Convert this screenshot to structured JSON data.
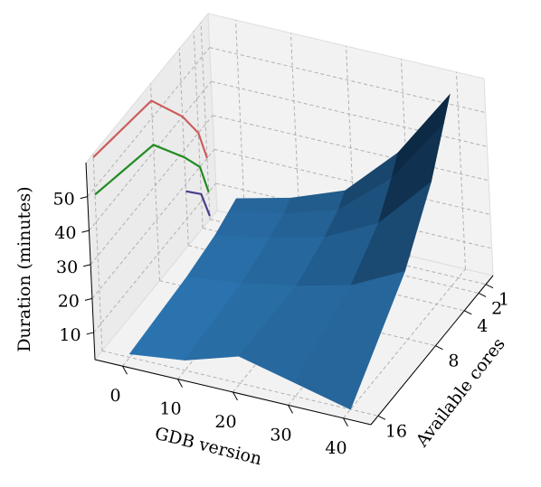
{
  "chart_data": {
    "type": "surface3d",
    "x_label": "GDB version",
    "y_label": "Available cores",
    "z_label": "Duration (minutes)",
    "x": [
      0,
      10,
      20,
      30,
      40
    ],
    "y": [
      1,
      2,
      4,
      8,
      16
    ],
    "z": [
      [
        10,
        14,
        20,
        35,
        56
      ],
      [
        9,
        12,
        17,
        30,
        50
      ],
      [
        7,
        10,
        14,
        22,
        38
      ],
      [
        5,
        7,
        10,
        14,
        22
      ],
      [
        3,
        5,
        10,
        6,
        2
      ]
    ],
    "surface_colors": [
      "#2e7ab8",
      "#0d2a45"
    ],
    "wall_lines": [
      {
        "color": "#cd5c5c",
        "values": [
          59,
          55,
          40,
          30,
          20
        ]
      },
      {
        "color": "#228b22",
        "values": [
          48,
          42,
          28,
          20,
          10
        ]
      },
      {
        "color": "#483d8b",
        "values": [
          null,
          null,
          18,
          12,
          3
        ]
      }
    ],
    "xlim": [
      -5,
      45
    ],
    "ylim": [
      0,
      17
    ],
    "zlim": [
      2,
      60
    ],
    "xticks": [
      0,
      10,
      20,
      30,
      40
    ],
    "yticks": [
      1,
      2,
      4,
      8,
      16
    ],
    "zticks": [
      10,
      20,
      30,
      40,
      50
    ],
    "grid": true
  }
}
